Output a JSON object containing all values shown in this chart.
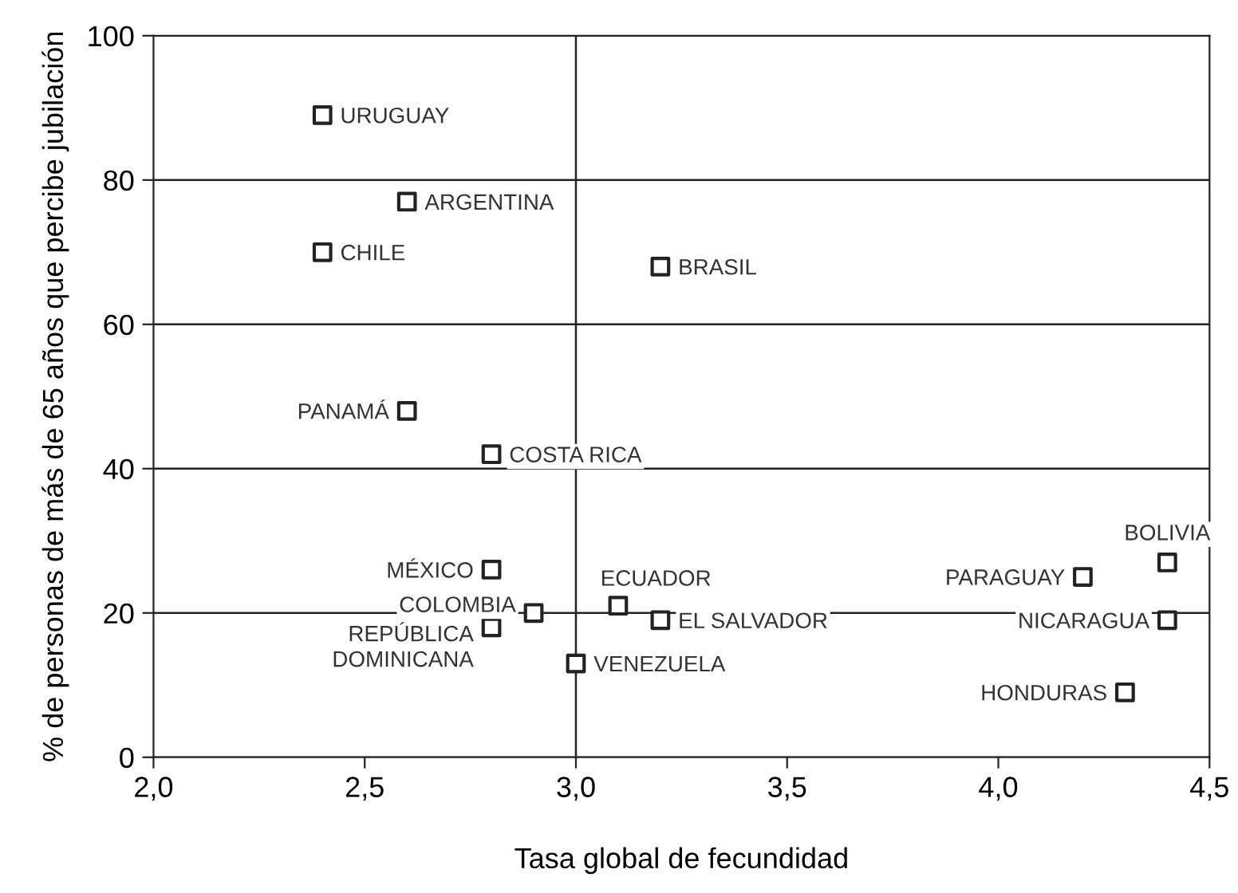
{
  "chart_data": {
    "type": "scatter",
    "xlabel": "Tasa global de fecundidad",
    "ylabel": "% de personas de más de 65 años que percibe jubilación",
    "series": [
      {
        "color": "#222222",
        "x": [
          2.4,
          2.6,
          2.4,
          3.2,
          2.6,
          2.8,
          2.8,
          2.9,
          2.8,
          3.0,
          3.1,
          3.2,
          4.2,
          4.4,
          4.4,
          4.3
        ],
        "values": [
          89,
          77,
          70,
          68,
          48,
          42,
          26,
          20,
          18,
          13,
          21,
          19,
          25,
          27,
          19,
          9
        ]
      }
    ],
    "annotations": [
      {
        "text": "URUGUAY",
        "x": 2.4,
        "y": 89
      },
      {
        "text": "ARGENTINA",
        "x": 2.6,
        "y": 77
      },
      {
        "text": "CHILE",
        "x": 2.4,
        "y": 70
      },
      {
        "text": "BRASIL",
        "x": 3.2,
        "y": 68
      },
      {
        "text": "PANAMÁ",
        "x": 2.6,
        "y": 48
      },
      {
        "text": "COSTA RICA",
        "x": 2.8,
        "y": 42
      },
      {
        "text": "MÉXICO",
        "x": 2.8,
        "y": 26
      },
      {
        "text": "COLOMBIA",
        "x": 2.9,
        "y": 20
      },
      {
        "text": "REPÚBLICA\nDOMINICANA",
        "x": 2.8,
        "y": 18
      },
      {
        "text": "VENEZUELA",
        "x": 3.0,
        "y": 13
      },
      {
        "text": "ECUADOR",
        "x": 3.1,
        "y": 21
      },
      {
        "text": "EL SALVADOR",
        "x": 3.2,
        "y": 19
      },
      {
        "text": "PARAGUAY",
        "x": 4.2,
        "y": 25
      },
      {
        "text": "BOLIVIA",
        "x": 4.4,
        "y": 27
      },
      {
        "text": "NICARAGUA",
        "x": 4.4,
        "y": 19
      },
      {
        "text": "HONDURAS",
        "x": 4.3,
        "y": 9
      }
    ],
    "xlim": [
      2.0,
      4.5
    ],
    "xticks": [
      {
        "value": 2.0,
        "label": "2,0"
      },
      {
        "value": 2.5,
        "label": "2,5"
      },
      {
        "value": 3.0,
        "label": "3,0"
      },
      {
        "value": 3.5,
        "label": "3,5"
      },
      {
        "value": 4.0,
        "label": "4,0"
      },
      {
        "value": 4.5,
        "label": "4,5"
      }
    ],
    "ylim": [
      0,
      100
    ],
    "yticks": [
      0,
      20,
      40,
      60,
      80,
      100
    ],
    "grid": "y",
    "marker": "square",
    "ref_lines": [
      {
        "axis": "x",
        "value": 3.0
      }
    ]
  }
}
